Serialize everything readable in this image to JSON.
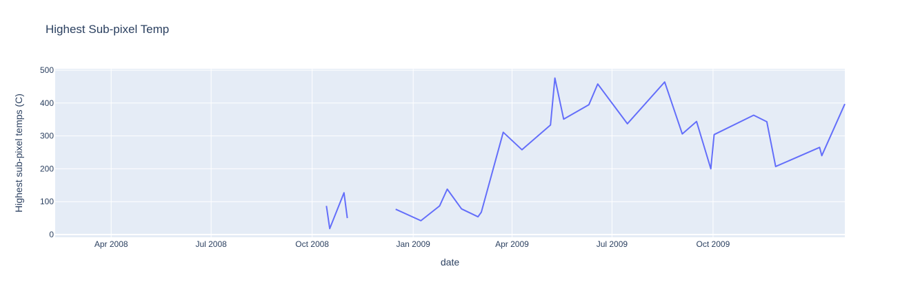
{
  "chart_data": {
    "type": "line",
    "title": "Highest Sub-pixel Temp",
    "xlabel": "date",
    "ylabel": "Highest sub-pixel temps (C)",
    "ylim": [
      0,
      500
    ],
    "xlim": [
      "2008-02-10",
      "2010-01-29"
    ],
    "grid": true,
    "y_ticks": [
      0,
      100,
      200,
      300,
      400,
      500
    ],
    "x_ticks": [
      {
        "date": "2008-04-01",
        "label": "Apr 2008"
      },
      {
        "date": "2008-07-01",
        "label": "Jul 2008"
      },
      {
        "date": "2008-10-01",
        "label": "Oct 2008"
      },
      {
        "date": "2009-01-01",
        "label": "Jan 2009"
      },
      {
        "date": "2009-04-01",
        "label": "Apr 2009"
      },
      {
        "date": "2009-07-01",
        "label": "Jul 2009"
      },
      {
        "date": "2009-10-01",
        "label": "Oct 2009"
      }
    ],
    "line_color": "#636efa",
    "segments": [
      [
        {
          "x": "2008-10-14",
          "y": 87
        },
        {
          "x": "2008-10-17",
          "y": 18
        },
        {
          "x": "2008-10-30",
          "y": 127
        },
        {
          "x": "2008-11-02",
          "y": 50
        }
      ],
      [
        {
          "x": "2008-12-16",
          "y": 77
        },
        {
          "x": "2009-01-08",
          "y": 42
        },
        {
          "x": "2009-01-25",
          "y": 87
        },
        {
          "x": "2009-02-01",
          "y": 138
        },
        {
          "x": "2009-02-14",
          "y": 78
        },
        {
          "x": "2009-03-01",
          "y": 54
        },
        {
          "x": "2009-03-04",
          "y": 68
        },
        {
          "x": "2009-03-24",
          "y": 311
        },
        {
          "x": "2009-04-10",
          "y": 258
        },
        {
          "x": "2009-05-06",
          "y": 333
        },
        {
          "x": "2009-05-10",
          "y": 476
        },
        {
          "x": "2009-05-18",
          "y": 351
        },
        {
          "x": "2009-06-10",
          "y": 395
        },
        {
          "x": "2009-06-18",
          "y": 458
        },
        {
          "x": "2009-07-15",
          "y": 337
        },
        {
          "x": "2009-08-18",
          "y": 464
        },
        {
          "x": "2009-09-03",
          "y": 306
        },
        {
          "x": "2009-09-16",
          "y": 344
        },
        {
          "x": "2009-09-29",
          "y": 200
        },
        {
          "x": "2009-10-02",
          "y": 304
        },
        {
          "x": "2009-11-07",
          "y": 363
        },
        {
          "x": "2009-11-19",
          "y": 343
        },
        {
          "x": "2009-11-27",
          "y": 207
        },
        {
          "x": "2010-01-06",
          "y": 265
        },
        {
          "x": "2010-01-08",
          "y": 240
        },
        {
          "x": "2010-01-29",
          "y": 397
        }
      ]
    ]
  }
}
